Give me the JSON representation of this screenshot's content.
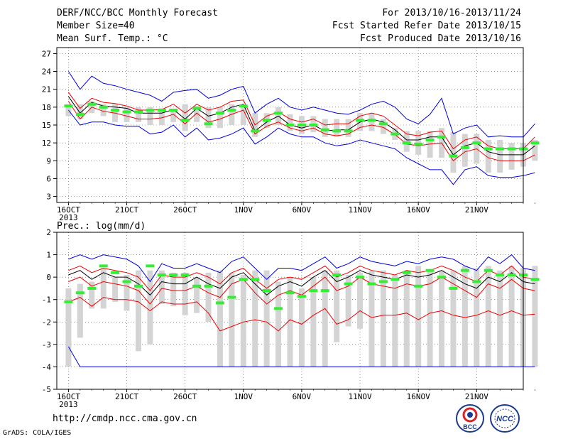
{
  "header": {
    "title": "DERF/NCC/BCC Monthly Forecast",
    "member": "Member Size=40",
    "variable": "Mean Surf. Temp.: °C",
    "period": "For 2013/10/16-2013/11/24",
    "refer": "Fcst Started Refer Date 2013/10/15",
    "produced": "Fcst Produced Date 2013/10/16"
  },
  "footer": {
    "url": "http://cmdp.ncc.cma.gov.cn",
    "grads": "GrADS: COLA/IGES",
    "logo_left": "BCC",
    "logo_right": "NCC"
  },
  "colors": {
    "max_min": "#0000dd",
    "pct_lines": "#ee0000",
    "mean": "#000000",
    "obs_bar": "#33ee33",
    "spread": "#d4d4d4",
    "grid": "#555555"
  },
  "chart_data": [
    {
      "type": "line",
      "panel": "temperature",
      "ylabel": "Mean Surf. Temp.: °C",
      "ylim": [
        2,
        28
      ],
      "yticks": [
        3,
        6,
        9,
        12,
        15,
        18,
        21,
        24,
        27
      ],
      "x_tick_labels": [
        "16OCT",
        "21OCT",
        "26OCT",
        "1NOV",
        "6NOV",
        "11NOV",
        "16NOV",
        "21NOV"
      ],
      "x_tick_positions": [
        0,
        5,
        10,
        15,
        20,
        25,
        30,
        35
      ],
      "x_sublabel": "2013",
      "xlim": [
        -1,
        39
      ],
      "grid": "dotted",
      "max": [
        24,
        21,
        23.2,
        22,
        21.6,
        21,
        20.5,
        20,
        19,
        20.5,
        20.8,
        21,
        19.5,
        20,
        21,
        21.5,
        17,
        18.5,
        19.5,
        18,
        17.5,
        18,
        17.5,
        17,
        16.8,
        17.5,
        18.5,
        19,
        18,
        16,
        15.2,
        16.8,
        19.5,
        13.5,
        14.5,
        15,
        13,
        13.2,
        13,
        13,
        15.2
      ],
      "upper": [
        20.5,
        17.8,
        19.5,
        18.8,
        18.6,
        18.2,
        17.5,
        17.5,
        17.6,
        18.5,
        17,
        18.5,
        17.5,
        18,
        19,
        19.2,
        15,
        16.5,
        17.2,
        16,
        15.5,
        16,
        15,
        15.2,
        15.2,
        16.5,
        17,
        16.5,
        15,
        13.5,
        13.2,
        13.8,
        14,
        11,
        12.5,
        13,
        11.5,
        11,
        11,
        11,
        13
      ],
      "mean": [
        19.8,
        17,
        18.8,
        18.2,
        18,
        17.8,
        17,
        17,
        17,
        17.6,
        16,
        17.8,
        16.5,
        17,
        18,
        18.5,
        14,
        15.5,
        16.5,
        15,
        14.5,
        15,
        14,
        14.2,
        14.2,
        15.5,
        16,
        15.5,
        14.2,
        12.5,
        12.5,
        13,
        13,
        10,
        11.5,
        12,
        10.5,
        10,
        10,
        10,
        11.5
      ],
      "lower": [
        19,
        16,
        18,
        17.3,
        17,
        16.5,
        16,
        16,
        16.2,
        16.8,
        15.2,
        17,
        15.5,
        16,
        16.8,
        17.5,
        13.5,
        14.8,
        15.5,
        14.5,
        14,
        14.5,
        13.5,
        13.2,
        13.5,
        14.6,
        15,
        14.6,
        13.4,
        11.8,
        11.5,
        11.8,
        12,
        9,
        10.5,
        11,
        9.5,
        9,
        9,
        9,
        10
      ],
      "min": [
        17.5,
        15,
        15.5,
        15.5,
        15,
        14.8,
        14.8,
        13.5,
        13.8,
        15,
        13,
        14.5,
        12.5,
        12.8,
        13.5,
        14.5,
        11.8,
        13,
        14.5,
        13.5,
        13,
        13,
        12,
        11.5,
        11.8,
        12.5,
        12,
        11.5,
        11,
        9.5,
        8.5,
        7.5,
        7.5,
        5,
        7.5,
        8,
        6.5,
        6.2,
        6.2,
        6.5,
        7
      ],
      "spread_high": [
        18.5,
        18.5,
        19,
        18.5,
        18.5,
        18,
        18,
        18,
        17.8,
        17.5,
        18.5,
        18.2,
        18,
        18,
        18.5,
        18.2,
        17,
        17,
        18,
        16.8,
        16.5,
        16.5,
        16,
        16,
        16,
        17,
        17,
        16,
        14.5,
        14,
        14,
        14,
        14.5,
        13.8,
        13.5,
        13.5,
        12.5,
        12.5,
        12,
        12,
        12.5
      ],
      "spread_low": [
        16.5,
        16,
        17,
        16.5,
        15.5,
        15.5,
        15.5,
        15,
        15,
        15.5,
        14,
        15.5,
        14.5,
        14.5,
        15,
        15,
        13,
        14.5,
        15,
        14,
        13.5,
        13.8,
        13,
        13,
        13,
        14,
        14,
        13.5,
        12.5,
        10.5,
        10,
        9.5,
        9.5,
        7,
        8,
        8.5,
        7,
        7,
        7.5,
        8,
        9
      ],
      "observed": [
        18.2,
        16.8,
        18.5,
        18,
        17.5,
        17.2,
        17.2,
        17.5,
        17.5,
        17.5,
        15.8,
        17.8,
        15.2,
        17,
        17.5,
        18.2,
        14,
        15.8,
        17,
        15,
        15,
        15,
        14.2,
        14,
        14,
        15.8,
        15.8,
        15.2,
        13.5,
        12,
        11.8,
        12.5,
        13,
        9.8,
        11.2,
        12,
        11,
        11,
        11,
        11,
        12
      ]
    },
    {
      "type": "line",
      "panel": "precipitation",
      "ylabel": "Prec.: log(mm/d)",
      "ylim": [
        -5,
        2
      ],
      "yticks": [
        -5,
        -4,
        -3,
        -2,
        -1,
        0,
        1,
        2
      ],
      "x_tick_labels": [
        "16OCT",
        "21OCT",
        "26OCT",
        "1NOV",
        "6NOV",
        "11NOV",
        "16NOV",
        "21NOV"
      ],
      "x_tick_positions": [
        0,
        5,
        10,
        15,
        20,
        25,
        30,
        35
      ],
      "x_sublabel": "2013",
      "xlim": [
        -1,
        39
      ],
      "grid": "dotted",
      "max": [
        0.8,
        1,
        0.8,
        1,
        0.9,
        0.8,
        0.5,
        -0.2,
        0.6,
        0.4,
        0.4,
        0.6,
        0.4,
        0.2,
        0.7,
        0.9,
        0.4,
        -0.1,
        0.4,
        0.4,
        0.3,
        0.6,
        0.9,
        0.4,
        0.6,
        0.9,
        0.7,
        0.6,
        0.5,
        0.7,
        0.6,
        0.8,
        0.9,
        0.8,
        0.5,
        0.3,
        0.9,
        0.6,
        1,
        0.4,
        0.3
      ],
      "upper": [
        0.3,
        0.5,
        0.2,
        0.4,
        0.3,
        0.2,
        0,
        -0.6,
        0.1,
        0,
        0,
        0.2,
        0,
        -0.3,
        0.2,
        0.4,
        -0.1,
        -0.5,
        -0.1,
        0,
        -0.1,
        0.2,
        0.5,
        0,
        0.2,
        0.5,
        0.3,
        0.2,
        0.1,
        0.3,
        0.2,
        0.3,
        0.5,
        0.3,
        0,
        -0.2,
        0.3,
        0.1,
        0.5,
        0,
        -0.1
      ],
      "mean": [
        0.1,
        0.3,
        -0.1,
        0.2,
        0,
        0,
        -0.3,
        -0.8,
        -0.2,
        -0.3,
        -0.3,
        0,
        -0.3,
        -0.5,
        0,
        0.2,
        -0.3,
        -0.8,
        -0.4,
        -0.2,
        -0.4,
        0,
        0.3,
        -0.2,
        0,
        0.3,
        0.1,
        0,
        -0.1,
        0.1,
        0,
        0.1,
        0.3,
        0,
        -0.3,
        -0.5,
        0,
        -0.2,
        0.2,
        -0.2,
        -0.3
      ],
      "lower": [
        -0.2,
        0,
        -0.4,
        -0.2,
        -0.3,
        -0.4,
        -0.6,
        -1.2,
        -0.5,
        -0.6,
        -0.6,
        -0.4,
        -0.7,
        -0.9,
        -0.3,
        -0.1,
        -0.7,
        -1.2,
        -0.8,
        -0.6,
        -0.8,
        -0.4,
        0,
        -0.6,
        -0.4,
        0,
        -0.3,
        -0.4,
        -0.5,
        -0.3,
        -0.4,
        -0.3,
        0,
        -0.3,
        -0.6,
        -0.9,
        -0.3,
        -0.5,
        -0.1,
        -0.5,
        -0.6
      ],
      "p10": [
        -1.1,
        -0.9,
        -1.3,
        -0.9,
        -1,
        -1,
        -1.1,
        -1.5,
        -1.1,
        -1.2,
        -1.2,
        -1.1,
        -1.6,
        -2.4,
        -2.2,
        -2,
        -1.9,
        -2,
        -2.4,
        -1.9,
        -2.1,
        -1.7,
        -1.4,
        -2.1,
        -1.9,
        -1.5,
        -1.8,
        -1.7,
        -1.7,
        -1.6,
        -1.9,
        -1.6,
        -1.5,
        -1.7,
        -1.8,
        -1.7,
        -1.5,
        -1.7,
        -1.5,
        -1.7,
        -1.65
      ],
      "min": [
        -3.1,
        -4,
        -4,
        -4,
        -4,
        -4,
        -4,
        -4,
        -4,
        -4,
        -4,
        -4,
        -4,
        -4,
        -4,
        -4,
        -4,
        -4,
        -4,
        -4,
        -4,
        -4,
        -4,
        -4,
        -4,
        -4,
        -4,
        -4,
        -4,
        -4,
        -4,
        -4,
        -4,
        -4,
        -4,
        -4,
        -4,
        -4,
        -4,
        -4,
        -4
      ],
      "spread_high": [
        -0.5,
        -0.3,
        -0.2,
        0.4,
        0,
        0.1,
        0.3,
        0.3,
        0.3,
        0.2,
        0.2,
        0,
        0.2,
        0.3,
        0.2,
        0.1,
        0.3,
        0.3,
        -0.2,
        0,
        -0.5,
        0,
        0.3,
        0.3,
        0.1,
        0.2,
        0.3,
        0.3,
        0.1,
        0.3,
        0.5,
        0.3,
        0.3,
        0.3,
        0.5,
        0.4,
        0.5,
        0.3,
        0.5,
        0.4,
        0.5
      ],
      "spread_low": [
        -4,
        -2.7,
        -1.4,
        -1.4,
        -1.1,
        -1.5,
        -3.3,
        -3,
        -1.2,
        -1.3,
        -1.7,
        -1.6,
        -2,
        -4,
        -4,
        -4,
        -4,
        -4,
        -4,
        -4,
        -4,
        -4,
        -4,
        -2.9,
        -2.2,
        -2.3,
        -4,
        -4,
        -4,
        -4,
        -4,
        -4,
        -4,
        -4,
        -4,
        -4,
        -4,
        -4,
        -4,
        -4,
        -4
      ],
      "observed": [
        -1.1,
        -0.7,
        -0.5,
        0.5,
        0.2,
        -0.2,
        -0.4,
        0.5,
        0.1,
        0.1,
        0.1,
        -0.4,
        -0.4,
        -1.15,
        -0.9,
        -0.1,
        -0.1,
        -0.6,
        -1.4,
        -0.7,
        -0.85,
        -0.6,
        -0.6,
        0.1,
        -0.3,
        0,
        -0.3,
        -0.2,
        -0.1,
        0.2,
        -0.4,
        0.3,
        0,
        -0.5,
        0.3,
        -0.2,
        0.3,
        0.1,
        0.1,
        0.1,
        -0.1
      ]
    }
  ]
}
